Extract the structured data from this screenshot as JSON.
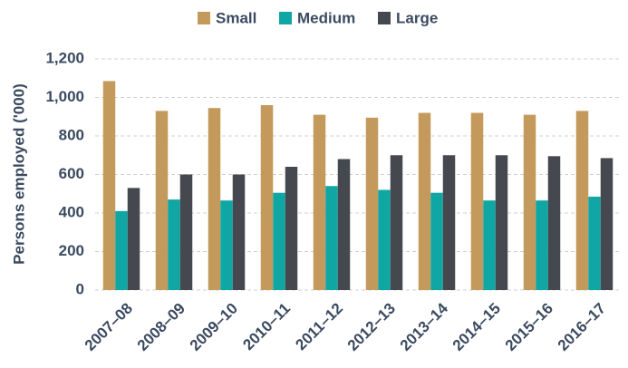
{
  "chart_data": {
    "type": "bar",
    "y_label": "Persons employed ('000)",
    "categories": [
      "2007–08",
      "2008–09",
      "2009–10",
      "2010–11",
      "2011–12",
      "2012–13",
      "2013–14",
      "2014–15",
      "2015–16",
      "2016–17"
    ],
    "series": [
      {
        "name": "Small",
        "color": "#c49a5c",
        "values": [
          1085,
          930,
          945,
          960,
          910,
          895,
          920,
          920,
          910,
          930
        ]
      },
      {
        "name": "Medium",
        "color": "#10a6a4",
        "values": [
          410,
          470,
          465,
          505,
          540,
          520,
          505,
          465,
          465,
          485
        ]
      },
      {
        "name": "Large",
        "color": "#45484e",
        "values": [
          530,
          600,
          600,
          640,
          680,
          700,
          700,
          700,
          695,
          685
        ]
      }
    ],
    "ylim": [
      0,
      1200
    ],
    "yticks": [
      0,
      200,
      400,
      600,
      800,
      {
        "value": 1000,
        "label": "1,000"
      },
      {
        "value": 1200,
        "label": "1,200"
      }
    ],
    "grid": true,
    "legend": "top"
  }
}
